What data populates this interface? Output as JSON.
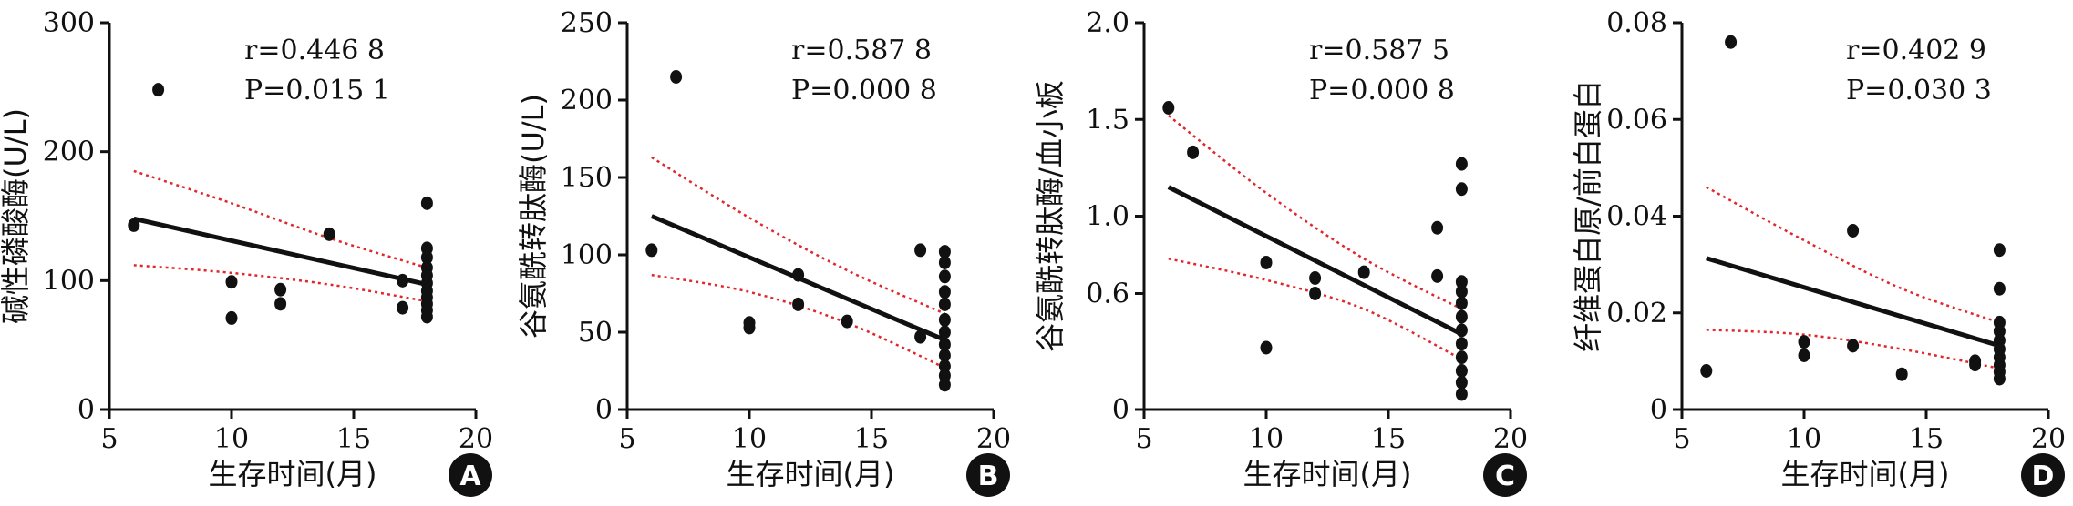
{
  "chart_data": [
    {
      "type": "scatter",
      "panel": "A",
      "title": "",
      "xlabel": "生存时间(月)",
      "ylabel": "碱性磷酸酶(U/L)",
      "xlim": [
        5,
        20
      ],
      "ylim": [
        0,
        300
      ],
      "xticks": [
        "5",
        "10",
        "15",
        "20"
      ],
      "yticks": [
        "0",
        "100",
        "200",
        "300"
      ],
      "stat_r": "r=0.446 8",
      "stat_p": "P=0.015 1",
      "points": [
        [
          6,
          143
        ],
        [
          7,
          248
        ],
        [
          10,
          99
        ],
        [
          10,
          71
        ],
        [
          12,
          93
        ],
        [
          12,
          82
        ],
        [
          14,
          136
        ],
        [
          17,
          100
        ],
        [
          17,
          79
        ],
        [
          18,
          160
        ],
        [
          18,
          125
        ],
        [
          18,
          118
        ],
        [
          18,
          110
        ],
        [
          18,
          104
        ],
        [
          18,
          98
        ],
        [
          18,
          92
        ],
        [
          18,
          87
        ],
        [
          18,
          82
        ],
        [
          18,
          77
        ],
        [
          18,
          72
        ]
      ],
      "fit_line": [
        [
          6,
          148
        ],
        [
          18,
          97
        ]
      ],
      "ci_upper": [
        [
          6,
          185
        ],
        [
          10,
          160
        ],
        [
          14,
          133
        ],
        [
          18,
          110
        ]
      ],
      "ci_lower": [
        [
          6,
          112
        ],
        [
          10,
          106
        ],
        [
          14,
          97
        ],
        [
          18,
          84
        ]
      ]
    },
    {
      "type": "scatter",
      "panel": "B",
      "title": "",
      "xlabel": "生存时间(月)",
      "ylabel": "谷氨酰转肽酶(U/L)",
      "xlim": [
        5,
        20
      ],
      "ylim": [
        0,
        250
      ],
      "xticks": [
        "5",
        "10",
        "15",
        "20"
      ],
      "yticks": [
        "0",
        "50",
        "100",
        "150",
        "200",
        "250"
      ],
      "stat_r": "r=0.587 8",
      "stat_p": "P=0.000 8",
      "points": [
        [
          6,
          103
        ],
        [
          7,
          215
        ],
        [
          10,
          56
        ],
        [
          10,
          53
        ],
        [
          12,
          87
        ],
        [
          12,
          68
        ],
        [
          14,
          57
        ],
        [
          17,
          103
        ],
        [
          17,
          47
        ],
        [
          18,
          102
        ],
        [
          18,
          95
        ],
        [
          18,
          86
        ],
        [
          18,
          76
        ],
        [
          18,
          68
        ],
        [
          18,
          58
        ],
        [
          18,
          50
        ],
        [
          18,
          42
        ],
        [
          18,
          35
        ],
        [
          18,
          28
        ],
        [
          18,
          22
        ],
        [
          18,
          16
        ]
      ],
      "fit_line": [
        [
          6,
          125
        ],
        [
          18,
          45
        ]
      ],
      "ci_upper": [
        [
          6,
          163
        ],
        [
          10,
          124
        ],
        [
          14,
          90
        ],
        [
          18,
          62
        ]
      ],
      "ci_lower": [
        [
          6,
          87
        ],
        [
          10,
          76
        ],
        [
          14,
          56
        ],
        [
          18,
          27
        ]
      ]
    },
    {
      "type": "scatter",
      "panel": "C",
      "title": "",
      "xlabel": "生存时间(月)",
      "ylabel": "谷氨酰转肽酶/血小板",
      "xlim": [
        5,
        20
      ],
      "ylim": [
        0,
        2.0
      ],
      "xticks": [
        "5",
        "10",
        "15",
        "20"
      ],
      "yticks": [
        "0",
        "0.6",
        "1.0",
        "1.5",
        "2.0"
      ],
      "stat_r": "r=0.587 5",
      "stat_p": "P=0.000 8",
      "points": [
        [
          6,
          1.56
        ],
        [
          7,
          1.33
        ],
        [
          10,
          0.76
        ],
        [
          10,
          0.32
        ],
        [
          12,
          0.6
        ],
        [
          12,
          0.68
        ],
        [
          14,
          0.71
        ],
        [
          17,
          0.94
        ],
        [
          17,
          0.69
        ],
        [
          18,
          1.27
        ],
        [
          18,
          1.14
        ],
        [
          18,
          0.66
        ],
        [
          18,
          0.61
        ],
        [
          18,
          0.55
        ],
        [
          18,
          0.48
        ],
        [
          18,
          0.41
        ],
        [
          18,
          0.34
        ],
        [
          18,
          0.27
        ],
        [
          18,
          0.2
        ],
        [
          18,
          0.14
        ],
        [
          18,
          0.08
        ]
      ],
      "fit_line": [
        [
          6,
          1.15
        ],
        [
          18,
          0.39
        ]
      ],
      "ci_upper": [
        [
          6,
          1.52
        ],
        [
          10,
          1.12
        ],
        [
          14,
          0.78
        ],
        [
          18,
          0.52
        ]
      ],
      "ci_lower": [
        [
          6,
          0.78
        ],
        [
          10,
          0.67
        ],
        [
          14,
          0.52
        ],
        [
          18,
          0.26
        ]
      ]
    },
    {
      "type": "scatter",
      "panel": "D",
      "title": "",
      "xlabel": "生存时间(月)",
      "ylabel": "纤维蛋白原/前白蛋白",
      "xlim": [
        5,
        20
      ],
      "ylim": [
        0,
        0.08
      ],
      "xticks": [
        "5",
        "10",
        "15",
        "20"
      ],
      "yticks": [
        "0",
        "0.02",
        "0.04",
        "0.06",
        "0.08"
      ],
      "stat_r": "r=0.402 9",
      "stat_p": "P=0.030 3",
      "points": [
        [
          6,
          0.008
        ],
        [
          7,
          0.076
        ],
        [
          10,
          0.014
        ],
        [
          10,
          0.0112
        ],
        [
          12,
          0.037
        ],
        [
          12,
          0.0132
        ],
        [
          14,
          0.0073
        ],
        [
          17,
          0.01
        ],
        [
          17,
          0.0093
        ],
        [
          18,
          0.033
        ],
        [
          18,
          0.025
        ],
        [
          18,
          0.018
        ],
        [
          18,
          0.0162
        ],
        [
          18,
          0.0143
        ],
        [
          18,
          0.0125
        ],
        [
          18,
          0.0108
        ],
        [
          18,
          0.0092
        ],
        [
          18,
          0.0078
        ],
        [
          18,
          0.0064
        ]
      ],
      "fit_line": [
        [
          6,
          0.0313
        ],
        [
          18,
          0.0132
        ]
      ],
      "ci_upper": [
        [
          6,
          0.046
        ],
        [
          10,
          0.035
        ],
        [
          14,
          0.025
        ],
        [
          18,
          0.018
        ]
      ],
      "ci_lower": [
        [
          6,
          0.0165
        ],
        [
          10,
          0.0155
        ],
        [
          14,
          0.0125
        ],
        [
          18,
          0.0085
        ]
      ]
    }
  ],
  "colors": {
    "axis": "#111111",
    "point": "#111111",
    "fit": "#111111",
    "ci": "#e0282c",
    "badge": "#111111"
  }
}
